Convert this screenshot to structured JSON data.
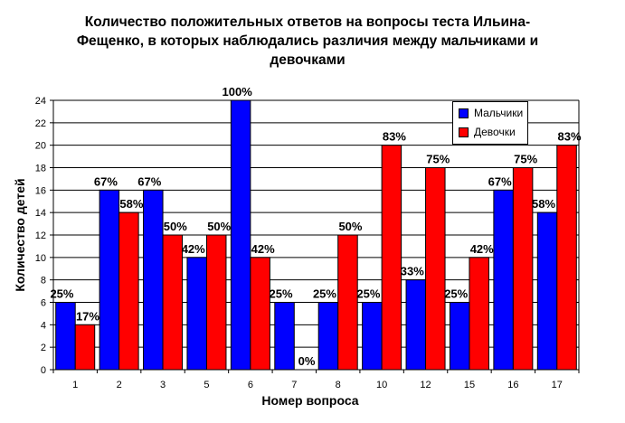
{
  "chart_data": {
    "type": "bar",
    "title_lines": [
      "Количество положительных ответов на вопросы теста Ильина-",
      "Фещенко, в которых наблюдались различия между мальчиками и",
      "девочками"
    ],
    "xlabel": "Номер вопроса",
    "ylabel": "Количество детей",
    "categories": [
      "1",
      "2",
      "3",
      "5",
      "6",
      "7",
      "8",
      "10",
      "12",
      "15",
      "16",
      "17"
    ],
    "ylim": [
      0,
      24
    ],
    "yticks": [
      "0",
      "2",
      "4",
      "6",
      "8",
      "10",
      "12",
      "14",
      "16",
      "18",
      "20",
      "22",
      "24"
    ],
    "grid": true,
    "legend_position": "top-right",
    "series": [
      {
        "name": "Мальчики",
        "color": "#0000FF",
        "values": [
          6,
          16,
          16,
          10,
          24,
          6,
          6,
          6,
          8,
          6,
          16,
          14
        ],
        "labels": [
          "25%",
          "67%",
          "67%",
          "42%",
          "100%",
          "25%",
          "25%",
          "25%",
          "33%",
          "25%",
          "67%",
          "58%"
        ]
      },
      {
        "name": "Девочки",
        "color": "#FF0000",
        "values": [
          4,
          14,
          12,
          12,
          10,
          0,
          12,
          20,
          18,
          10,
          18,
          20
        ],
        "labels": [
          "17%",
          "58%",
          "50%",
          "50%",
          "42%",
          "0%",
          "50%",
          "83%",
          "75%",
          "42%",
          "75%",
          "83%"
        ]
      }
    ]
  }
}
